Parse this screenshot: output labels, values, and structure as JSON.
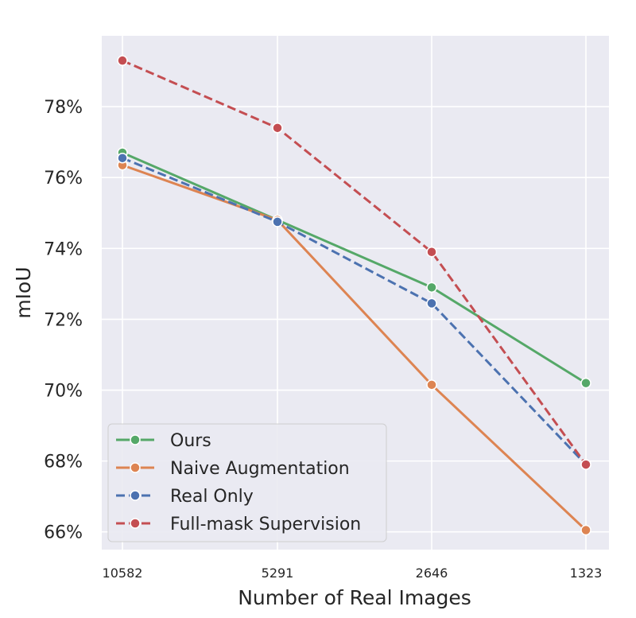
{
  "chart_data": {
    "type": "line",
    "title": "",
    "xlabel": "Number of Real Images",
    "ylabel": "mIoU",
    "categories": [
      "10582",
      "5291",
      "2646",
      "1323"
    ],
    "y_ticks": [
      "66%",
      "68%",
      "70%",
      "72%",
      "74%",
      "76%",
      "78%"
    ],
    "y_tick_values": [
      66,
      68,
      70,
      72,
      74,
      76,
      78
    ],
    "ylim": [
      65.5,
      80.0
    ],
    "grid": true,
    "legend_position": "lower-left",
    "series": [
      {
        "name": "Ours",
        "values": [
          76.7,
          74.8,
          72.9,
          70.2
        ],
        "color": "#55a868",
        "dashed": false
      },
      {
        "name": "Naive Augmentation",
        "values": [
          76.35,
          74.8,
          70.15,
          66.05
        ],
        "color": "#dd8452",
        "dashed": false
      },
      {
        "name": "Real Only",
        "values": [
          76.55,
          74.75,
          72.45,
          67.9
        ],
        "color": "#4c72b0",
        "dashed": true
      },
      {
        "name": "Full-mask Supervision",
        "values": [
          79.3,
          77.4,
          73.9,
          67.9
        ],
        "color": "#c44e52",
        "dashed": true
      }
    ]
  }
}
